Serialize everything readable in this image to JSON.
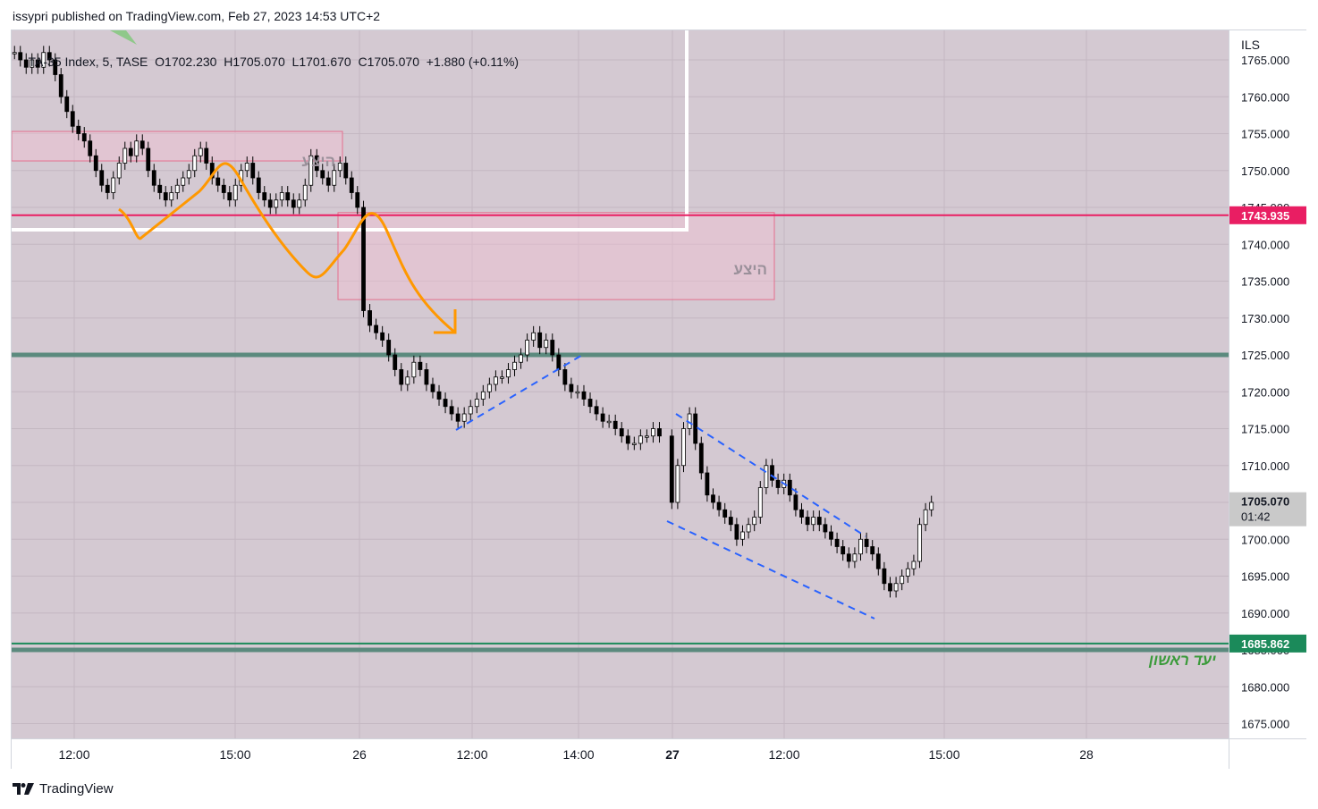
{
  "header": {
    "text": "issypri published on TradingView.com, Feb 27, 2023 14:53 UTC+2"
  },
  "legend": {
    "symbol": "TA-35 Index, 5, TASE",
    "open": "O1702.230",
    "high": "H1705.070",
    "low": "L1701.670",
    "close": "C1705.070",
    "change": "+1.880 (+0.11%)"
  },
  "price_axis": {
    "currency": "ILS",
    "ticks": [
      "1765.000",
      "1760.000",
      "1755.000",
      "1750.000",
      "1745.000",
      "1740.000",
      "1735.000",
      "1730.000",
      "1725.000",
      "1720.000",
      "1715.000",
      "1710.000",
      "1705.000",
      "1700.000",
      "1695.000",
      "1690.000",
      "1685.000",
      "1680.000",
      "1675.000"
    ],
    "badges": {
      "resistance": "1743.935",
      "target": "1685.862",
      "last_price": "1705.070",
      "countdown": "01:42"
    }
  },
  "time_axis": {
    "labels": [
      "12:00",
      "15:00",
      "26",
      "12:00",
      "14:00",
      "27",
      "12:00",
      "15:00",
      "28"
    ]
  },
  "annotations": {
    "supply_label_1": "היצע",
    "supply_label_2": "היצע",
    "target_label": "יעד ראשון"
  },
  "footer": {
    "brand": "TradingView"
  },
  "colors": {
    "background": "#d4c9d2",
    "resistance_line": "#e91e63",
    "support_line": "#5b8a7e",
    "target_line": "#1b8a5a",
    "orange_path": "#ff9800",
    "blue_dashed": "#2962ff",
    "candle_up": "#ffffff",
    "candle_down": "#000000"
  },
  "chart_data": {
    "type": "candlestick",
    "symbol": "TA-35 Index",
    "interval": "5",
    "exchange": "TASE",
    "ylim": [
      1673,
      1769
    ],
    "levels": [
      {
        "price": 1743.935,
        "role": "resistance"
      },
      {
        "price": 1725.0,
        "role": "support"
      },
      {
        "price": 1685.862,
        "role": "target"
      },
      {
        "price": 1685.0,
        "role": "target-band"
      }
    ],
    "zones": [
      {
        "label": "היצע",
        "from_price": 1751.3,
        "to_price": 1755.3
      },
      {
        "label": "היצע",
        "from_price": 1732.5,
        "to_price": 1744.3
      }
    ],
    "series": [
      {
        "values": [
          1766,
          1765,
          1764,
          1765,
          1764,
          1766,
          1765,
          1763,
          1760,
          1758,
          1756,
          1755,
          1754,
          1752,
          1750,
          1748,
          1747,
          1749,
          1751,
          1753,
          1752,
          1754,
          1753,
          1750,
          1748,
          1747,
          1746,
          1747,
          1748,
          1749,
          1750,
          1752,
          1753,
          1751,
          1749,
          1748,
          1747,
          1746,
          1748,
          1750,
          1751,
          1749,
          1747,
          1746,
          1745,
          1746,
          1747,
          1746,
          1745,
          1746,
          1748,
          1752,
          1750,
          1749,
          1748,
          1750,
          1751,
          1749,
          1747,
          1745,
          1731,
          1729,
          1728,
          1727,
          1725,
          1723,
          1721,
          1722,
          1724,
          1723,
          1721,
          1720,
          1719,
          1718,
          1717,
          1716,
          1717,
          1718,
          1719,
          1720,
          1721,
          1722,
          1722,
          1723,
          1724,
          1725,
          1727,
          1728,
          1726,
          1727,
          1725,
          1723,
          1721,
          1720,
          1720,
          1719,
          1718,
          1717,
          1716,
          1716,
          1715,
          1714,
          1713,
          1713,
          1714,
          1714,
          1715,
          1714,
          1705,
          1710,
          1715,
          1717,
          1713,
          1709,
          1706,
          1705,
          1704,
          1703,
          1702,
          1700,
          1701,
          1702,
          1703,
          1707,
          1710,
          1708,
          1707,
          1708,
          1706,
          1704,
          1703,
          1702,
          1703,
          1702,
          1701,
          1700,
          1699,
          1698,
          1697,
          1698,
          1700,
          1699,
          1698,
          1696,
          1694,
          1693,
          1694,
          1695,
          1696,
          1697,
          1702,
          1704,
          1705
        ]
      }
    ]
  }
}
